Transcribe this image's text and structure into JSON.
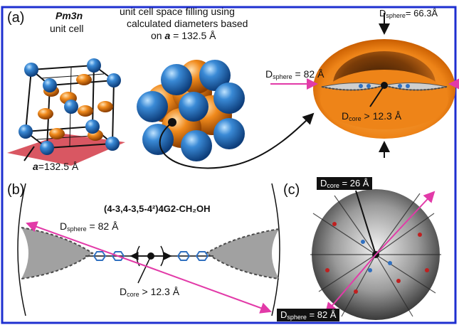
{
  "panel_labels": {
    "a": "(a)",
    "b": "(b)",
    "c": "(c)"
  },
  "panel_a": {
    "lattice_name": "Pm3n",
    "lattice_caption": "unit cell",
    "space_filling_caption": [
      "unit cell space filling using",
      "calculated diameters based",
      "on"
    ],
    "a_symbol": "a",
    "a_eq_value": "= 132.5 Å",
    "lattice_param_value": "=132.5 Å",
    "d_sphere_top": {
      "prefix": "D",
      "sub": "sphere",
      "value": "= 66.3Å"
    },
    "d_sphere_side": {
      "prefix": "D",
      "sub": "sphere",
      "value": " = 82 Å"
    },
    "d_core": {
      "prefix": "D",
      "sub": "core",
      "value": " > 12.3 Å"
    }
  },
  "panel_b": {
    "formula": "(4-3,4-3,5-4²)4G2-CH₂OH",
    "d_sphere": {
      "prefix": "D",
      "sub": "sphere",
      "value": " = 82 Å"
    },
    "d_core": {
      "prefix": "D",
      "sub": "core",
      "value": " > 12.3 Å"
    }
  },
  "panel_c": {
    "d_core": {
      "prefix": "D",
      "sub": "core",
      "value": " = 26 Å"
    },
    "d_sphere": {
      "prefix": "D",
      "sub": "sphere",
      "value": " = 82 Å"
    }
  },
  "colors": {
    "frame": "#1e2fd0",
    "sphere_blue": "#2f7fd0",
    "sphere_orange": "#ee8418",
    "plane_red": "#d23a46",
    "arrow_magenta": "#e23aa8",
    "molecule_grey": "#7a7a7a",
    "molecule_blue": "#3070c0"
  }
}
